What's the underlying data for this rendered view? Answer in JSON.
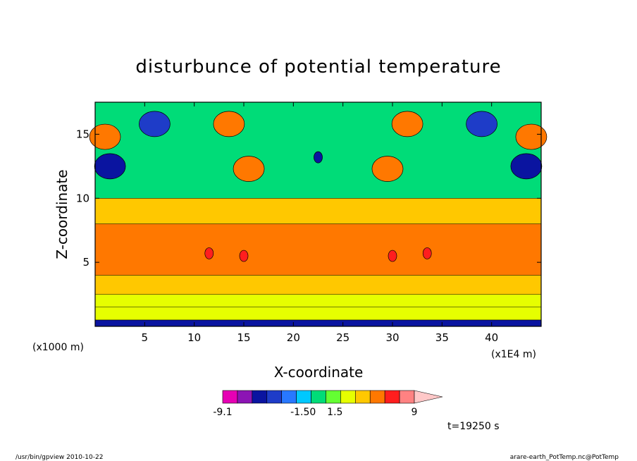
{
  "chart_data": {
    "type": "heatmap",
    "title": "disturbunce of potential temperature",
    "xlabel": "X-coordinate",
    "ylabel": "Z-coordinate",
    "x_unit_left": "(x1000 m)",
    "x_unit_right": "(x1E4 m)",
    "xlim": [
      0,
      45
    ],
    "ylim": [
      0,
      17.5
    ],
    "x_ticks": [
      "5",
      "10",
      "15",
      "20",
      "25",
      "30",
      "35",
      "40"
    ],
    "y_ticks": [
      "5",
      "10",
      "15"
    ],
    "x_tick_values": [
      5,
      10,
      15,
      20,
      25,
      30,
      35,
      40
    ],
    "y_tick_values": [
      5,
      10,
      15
    ],
    "colorbar": {
      "colors": [
        "#e600b4",
        "#8c14b4",
        "#0a14a0",
        "#1e3cc8",
        "#2878ff",
        "#00c8ff",
        "#00dc78",
        "#64ff32",
        "#e6ff00",
        "#ffc800",
        "#ff7800",
        "#ff1e1e",
        "#ff8282",
        "#ffc8c8"
      ],
      "labels": [
        "-9.1",
        "-1.50",
        "1.5",
        "9"
      ],
      "label_values": [
        -9.1,
        -1.5,
        1.5,
        9
      ]
    },
    "time_label": "t=19250 s",
    "layers": [
      {
        "z_from": 0,
        "z_to": 0.5,
        "level": "low",
        "color": "#0a14a0"
      },
      {
        "z_from": 0.5,
        "z_to": 1.5,
        "level": "weak negative",
        "color": "#e6ff00"
      },
      {
        "z_from": 2.5,
        "z_to": 4,
        "level": "weak positive",
        "color": "#ffc800"
      },
      {
        "z_from": 4,
        "z_to": 8,
        "level": "positive",
        "color": "#ff7800"
      },
      {
        "z_from": 8,
        "z_to": 10,
        "level": "weak positive",
        "color": "#ffc800"
      },
      {
        "z_from": 10,
        "z_to": 17.5,
        "level": "mixed",
        "color": "#00dc78"
      }
    ],
    "features": [
      {
        "x": 22.5,
        "z": 13.2,
        "level": "strong negative",
        "color": "#0a14a0"
      },
      {
        "x": 6,
        "z": 15.8,
        "level": "negative",
        "color": "#1e3cc8"
      },
      {
        "x": 39,
        "z": 15.8,
        "level": "negative",
        "color": "#1e3cc8"
      },
      {
        "x": 1.5,
        "z": 12.5,
        "level": "negative",
        "color": "#0a14a0"
      },
      {
        "x": 43.5,
        "z": 12.5,
        "level": "negative",
        "color": "#0a14a0"
      },
      {
        "x": 15.5,
        "z": 12.3,
        "level": "positive",
        "color": "#ff7800"
      },
      {
        "x": 29.5,
        "z": 12.3,
        "level": "positive",
        "color": "#ff7800"
      },
      {
        "x": 13.5,
        "z": 15.8,
        "level": "positive",
        "color": "#ff7800"
      },
      {
        "x": 31.5,
        "z": 15.8,
        "level": "positive",
        "color": "#ff7800"
      },
      {
        "x": 1,
        "z": 14.8,
        "level": "positive",
        "color": "#ff7800"
      },
      {
        "x": 44,
        "z": 14.8,
        "level": "positive",
        "color": "#ff7800"
      },
      {
        "x": 15,
        "z": 5.5,
        "level": "strong positive",
        "color": "#ff1e1e"
      },
      {
        "x": 30,
        "z": 5.5,
        "level": "strong positive",
        "color": "#ff1e1e"
      },
      {
        "x": 11.5,
        "z": 5.7,
        "level": "strong positive",
        "color": "#ff1e1e"
      },
      {
        "x": 33.5,
        "z": 5.7,
        "level": "strong positive",
        "color": "#ff1e1e"
      }
    ]
  },
  "footer": {
    "left": "/usr/bin/gpview   2010-10-22",
    "right": "arare-earth_PotTemp.nc@PotTemp"
  }
}
